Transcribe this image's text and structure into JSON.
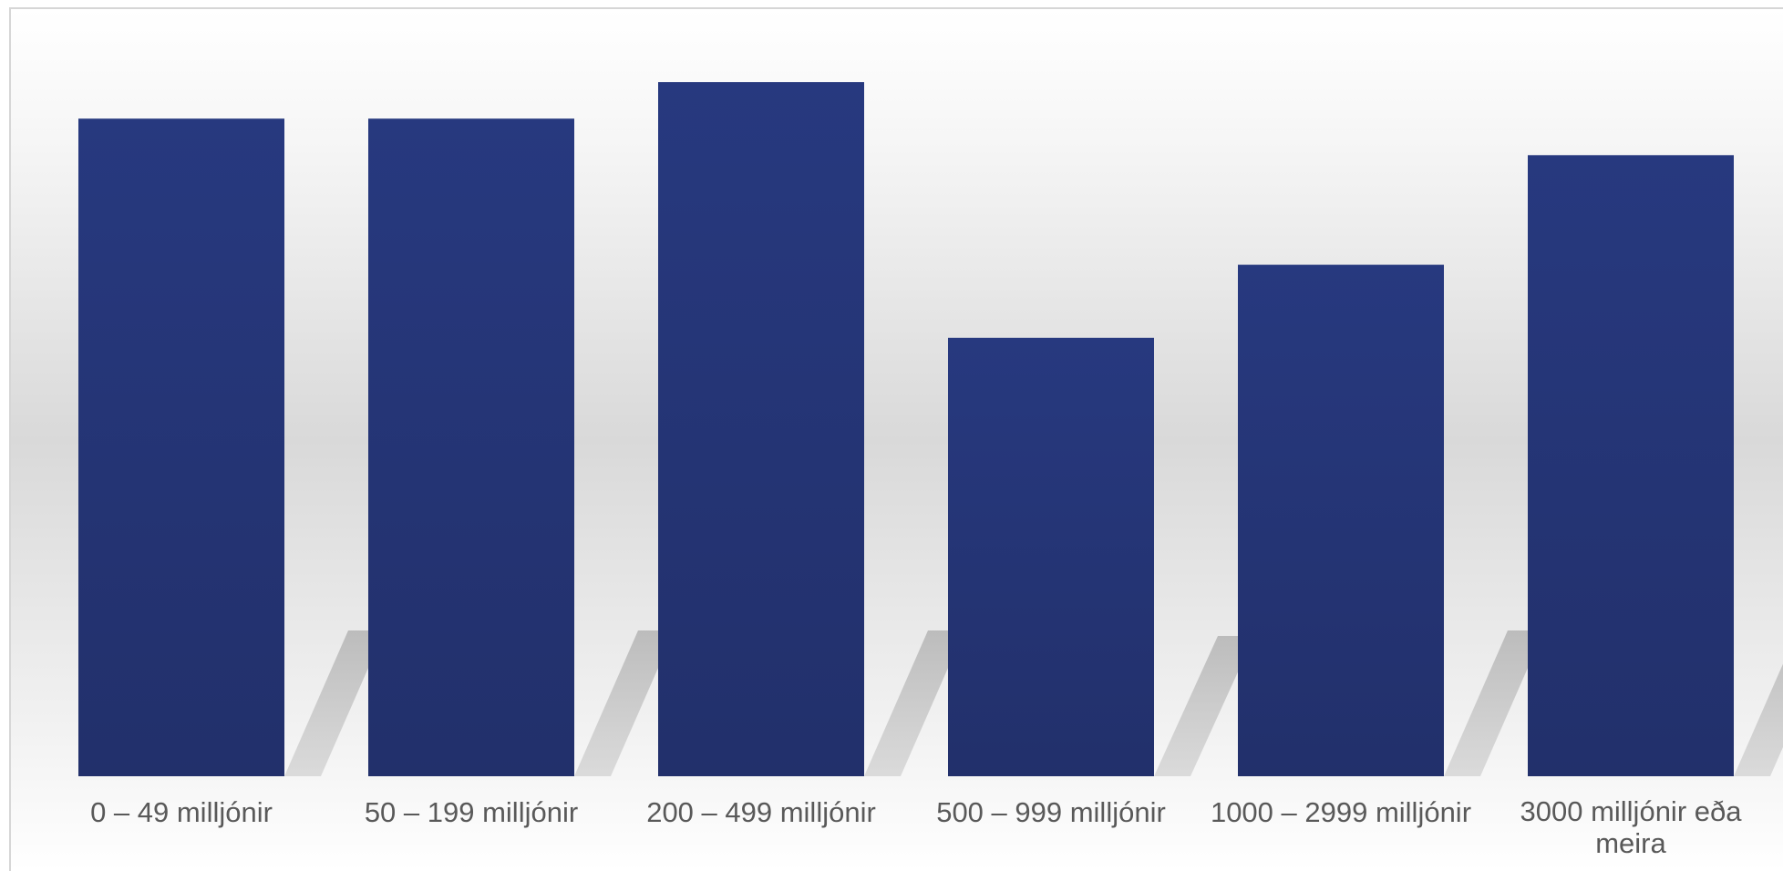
{
  "chart_data": {
    "type": "bar",
    "categories": [
      "0 – 49 milljónir",
      "50 – 199 milljónir",
      "200 – 499 milljónir",
      "500 – 999 milljónir",
      "1000 – 2999 milljónir",
      "3000 milljónir eða meira"
    ],
    "values": [
      18,
      18,
      19,
      12,
      14,
      17
    ],
    "ylim": [
      0,
      20
    ],
    "title": "",
    "xlabel": "",
    "ylabel": "",
    "grid": false,
    "legend": "none",
    "bar_color": "#27397f",
    "bar_color_dark": "#22306b"
  }
}
